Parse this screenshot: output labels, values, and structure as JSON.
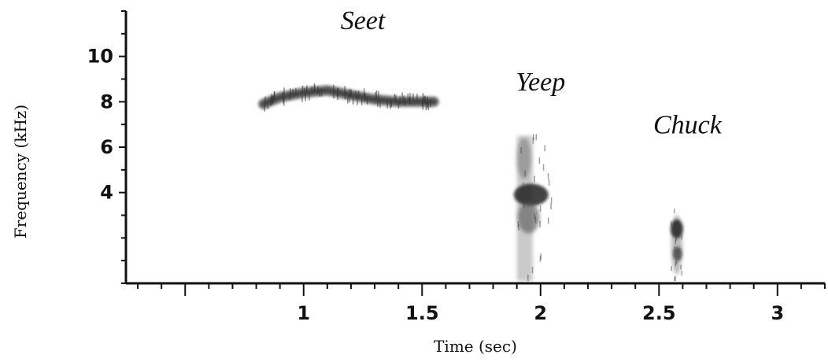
{
  "chart_data": {
    "type": "heatmap",
    "title": "",
    "xlabel": "Time (sec)",
    "ylabel": "Frequency (kHz)",
    "xlim": [
      0.25,
      3.2
    ],
    "ylim": [
      0,
      12
    ],
    "x_ticks": [
      1,
      1.5,
      2,
      2.5,
      3
    ],
    "x_tick_labels": [
      "1",
      "1.5",
      "2",
      "2.5",
      "3"
    ],
    "y_ticks": [
      4,
      6,
      8,
      10
    ],
    "y_tick_labels": [
      "4",
      "6",
      "8",
      "10"
    ],
    "grid": false,
    "annotations": [
      {
        "text": "Seet",
        "x": 1.25,
        "y": 11.2
      },
      {
        "text": "Yeep",
        "x": 2.0,
        "y": 8.5
      },
      {
        "text": "Chuck",
        "x": 2.62,
        "y": 6.6
      }
    ],
    "series": [
      {
        "name": "Seet",
        "points": [
          {
            "t": 0.83,
            "f": 7.9
          },
          {
            "t": 0.9,
            "f": 8.2
          },
          {
            "t": 1.0,
            "f": 8.4
          },
          {
            "t": 1.1,
            "f": 8.5
          },
          {
            "t": 1.2,
            "f": 8.3
          },
          {
            "t": 1.3,
            "f": 8.1
          },
          {
            "t": 1.4,
            "f": 8.0
          },
          {
            "t": 1.5,
            "f": 8.0
          },
          {
            "t": 1.55,
            "f": 8.0
          }
        ]
      },
      {
        "name": "Yeep",
        "t_start": 1.9,
        "t_end": 2.05,
        "f_low": 0.1,
        "f_high": 6.5,
        "dominant_f": 3.9
      },
      {
        "name": "Chuck",
        "t_start": 2.55,
        "t_end": 2.6,
        "f_low": 0.1,
        "f_high": 3.5,
        "dominant_f": 2.4
      }
    ]
  }
}
